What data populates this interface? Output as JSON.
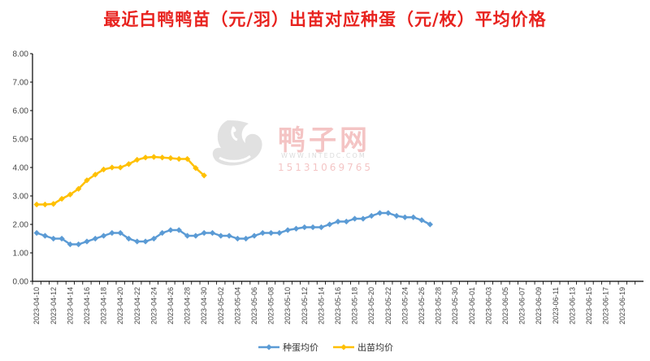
{
  "chart_data": {
    "type": "line",
    "title": "最近白鸭鸭苗（元/羽）出苗对应种蛋（元/枚）平均价格",
    "xlabel": "",
    "ylabel": "",
    "ylim": [
      0,
      8
    ],
    "yticks": [
      "0.00",
      "1.00",
      "2.00",
      "3.00",
      "4.00",
      "5.00",
      "6.00",
      "7.00",
      "8.00"
    ],
    "legend_position": "bottom",
    "grid": false,
    "x_start": "2023-04-10",
    "x_end": "2023-06-20",
    "x_tick_labels": [
      "2023-04-10",
      "2023-04-12",
      "2023-04-14",
      "2023-04-16",
      "2023-04-18",
      "2023-04-20",
      "2023-04-22",
      "2023-04-24",
      "2023-04-26",
      "2023-04-28",
      "2023-04-30",
      "2023-05-02",
      "2023-05-04",
      "2023-05-06",
      "2023-05-08",
      "2023-05-10",
      "2023-05-12",
      "2023-05-14",
      "2023-05-16",
      "2023-05-18",
      "2023-05-20",
      "2023-05-22",
      "2023-05-24",
      "2023-05-26",
      "2023-05-28",
      "2023-05-30",
      "2023-06-01",
      "2023-06-03",
      "2023-06-05",
      "2023-06-07",
      "2023-06-09",
      "2023-06-11",
      "2023-06-13",
      "2023-06-15",
      "2023-06-17",
      "2023-06-19"
    ],
    "series": [
      {
        "name": "种蛋均价",
        "color": "#5b9bd5",
        "x": [
          "2023-04-10",
          "2023-04-11",
          "2023-04-12",
          "2023-04-13",
          "2023-04-14",
          "2023-04-15",
          "2023-04-16",
          "2023-04-17",
          "2023-04-18",
          "2023-04-19",
          "2023-04-20",
          "2023-04-21",
          "2023-04-22",
          "2023-04-23",
          "2023-04-24",
          "2023-04-25",
          "2023-04-26",
          "2023-04-27",
          "2023-04-28",
          "2023-04-29",
          "2023-04-30",
          "2023-05-01",
          "2023-05-02",
          "2023-05-03",
          "2023-05-04",
          "2023-05-05",
          "2023-05-06",
          "2023-05-07",
          "2023-05-08",
          "2023-05-09",
          "2023-05-10",
          "2023-05-11",
          "2023-05-12",
          "2023-05-13",
          "2023-05-14",
          "2023-05-15",
          "2023-05-16",
          "2023-05-17",
          "2023-05-18",
          "2023-05-19",
          "2023-05-20",
          "2023-05-21",
          "2023-05-22",
          "2023-05-23",
          "2023-05-24",
          "2023-05-25",
          "2023-05-26",
          "2023-05-27"
        ],
        "values": [
          1.7,
          1.6,
          1.5,
          1.5,
          1.3,
          1.3,
          1.4,
          1.5,
          1.6,
          1.7,
          1.7,
          1.5,
          1.4,
          1.4,
          1.5,
          1.7,
          1.8,
          1.8,
          1.6,
          1.6,
          1.7,
          1.7,
          1.6,
          1.6,
          1.5,
          1.5,
          1.6,
          1.7,
          1.7,
          1.7,
          1.8,
          1.85,
          1.9,
          1.9,
          1.9,
          2.0,
          2.1,
          2.1,
          2.2,
          2.2,
          2.3,
          2.4,
          2.4,
          2.3,
          2.25,
          2.25,
          2.15,
          2.0
        ]
      },
      {
        "name": "出苗均价",
        "color": "#ffc000",
        "x": [
          "2023-04-10",
          "2023-04-11",
          "2023-04-12",
          "2023-04-13",
          "2023-04-14",
          "2023-04-15",
          "2023-04-16",
          "2023-04-17",
          "2023-04-18",
          "2023-04-19",
          "2023-04-20",
          "2023-04-21",
          "2023-04-22",
          "2023-04-23",
          "2023-04-24",
          "2023-04-25",
          "2023-04-26",
          "2023-04-27",
          "2023-04-28",
          "2023-04-29",
          "2023-04-30"
        ],
        "values": [
          2.7,
          2.7,
          2.72,
          2.9,
          3.05,
          3.25,
          3.55,
          3.75,
          3.93,
          4.0,
          4.0,
          4.12,
          4.27,
          4.35,
          4.37,
          4.35,
          4.33,
          4.3,
          4.3,
          3.98,
          3.72
        ]
      }
    ]
  },
  "watermark": {
    "brand": "鸭子网",
    "site": "WWW.INTEDC.COM",
    "phone": "15131069765"
  }
}
